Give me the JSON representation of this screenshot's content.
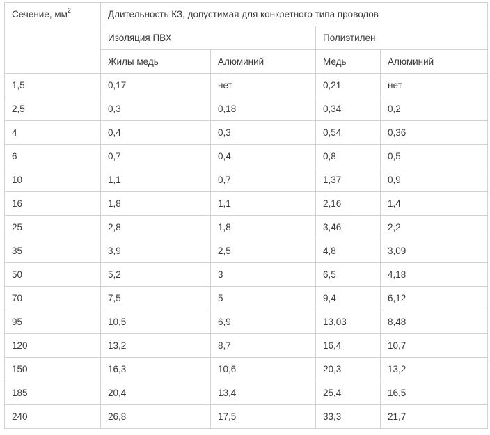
{
  "table": {
    "header": {
      "section": "Сечение, мм",
      "section_sup": "2",
      "duration": "Длительность КЗ, допустимая для конкретного типа проводов",
      "pvc": "Изоляция ПВХ",
      "polyethylene": "Полиэтилен",
      "pvc_copper": "Жилы медь",
      "pvc_aluminum": "Алюминий",
      "pe_copper": "Медь",
      "pe_aluminum": "Алюминий"
    },
    "rows": [
      [
        "1,5",
        "0,17",
        "нет",
        "0,21",
        "нет"
      ],
      [
        "2,5",
        "0,3",
        "0,18",
        "0,34",
        "0,2"
      ],
      [
        "4",
        "0,4",
        "0,3",
        "0,54",
        "0,36"
      ],
      [
        "6",
        "0,7",
        "0,4",
        "0,8",
        "0,5"
      ],
      [
        "10",
        "1,1",
        "0,7",
        "1,37",
        "0,9"
      ],
      [
        "16",
        "1,8",
        "1,1",
        "2,16",
        "1,4"
      ],
      [
        "25",
        "2,8",
        "1,8",
        "3,46",
        "2,2"
      ],
      [
        "35",
        "3,9",
        "2,5",
        "4,8",
        "3,09"
      ],
      [
        "50",
        "5,2",
        "3",
        "6,5",
        "4,18"
      ],
      [
        "70",
        "7,5",
        "5",
        "9,4",
        "6,12"
      ],
      [
        "95",
        "10,5",
        "6,9",
        "13,03",
        "8,48"
      ],
      [
        "120",
        "13,2",
        "8,7",
        "16,4",
        "10,7"
      ],
      [
        "150",
        "16,3",
        "10,6",
        "20,3",
        "13,2"
      ],
      [
        "185",
        "20,4",
        "13,4",
        "25,4",
        "16,5"
      ],
      [
        "240",
        "26,8",
        "17,5",
        "33,3",
        "21,7"
      ]
    ]
  }
}
